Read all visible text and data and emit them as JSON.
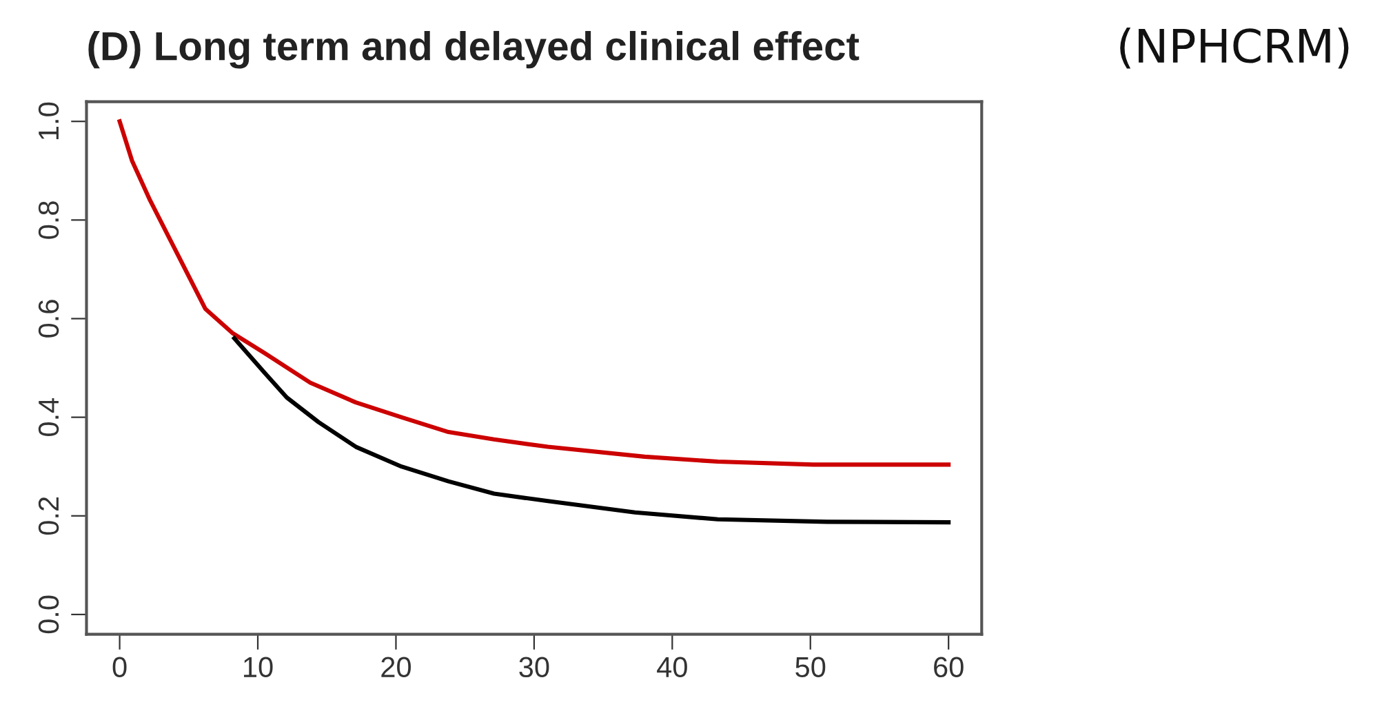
{
  "chart_data": {
    "type": "line",
    "title": "(D) Long term and delayed clinical effect",
    "subtitle": "(NPHCRM)",
    "xlim": [
      -2.4,
      62.4
    ],
    "ylim": [
      -0.04,
      1.04
    ],
    "xticks": [
      0,
      10,
      20,
      30,
      40,
      50,
      60
    ],
    "yticks": [
      {
        "value": 0,
        "label": "0.0"
      },
      {
        "value": 0.2,
        "label": "0.2"
      },
      {
        "value": 0.4,
        "label": "0.4"
      },
      {
        "value": 0.6,
        "label": "0.6"
      },
      {
        "value": 0.8,
        "label": "0.8"
      },
      {
        "value": 1,
        "label": "1.0"
      }
    ],
    "grid": false,
    "legend": false,
    "line_style": "solid",
    "marker": "none",
    "series": [
      {
        "color": "#cc0000",
        "x": [
          0,
          0.9,
          2.2,
          4.2,
          6.2,
          8.2,
          10.5,
          13.8,
          17.1,
          20.4,
          23.8,
          27.1,
          31,
          38,
          43.3,
          50.2,
          60
        ],
        "values": [
          1.0,
          0.92,
          0.84,
          0.73,
          0.62,
          0.57,
          0.53,
          0.47,
          0.43,
          0.4,
          0.37,
          0.355,
          0.34,
          0.32,
          0.31,
          0.304,
          0.304
        ]
      },
      {
        "color": "#000000",
        "x": [
          8.3,
          10.5,
          12.1,
          14.4,
          17.1,
          20.4,
          23.8,
          27.1,
          31,
          37.3,
          43.3,
          51.2,
          60
        ],
        "values": [
          0.56,
          0.49,
          0.44,
          0.39,
          0.34,
          0.3,
          0.27,
          0.245,
          0.23,
          0.207,
          0.193,
          0.188,
          0.187
        ]
      }
    ]
  }
}
